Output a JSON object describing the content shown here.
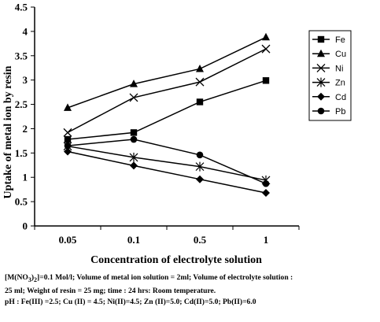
{
  "chart_data": {
    "type": "line",
    "title": "",
    "xlabel": "Concentration of electrolyte solution",
    "ylabel": "Uptake of metal ion by resin",
    "categories": [
      "0.05",
      "0.1",
      "0.5",
      "1"
    ],
    "ylim": [
      0,
      4.5
    ],
    "yticks": [
      "0",
      "0.5",
      "1",
      "1.5",
      "2",
      "2.5",
      "3",
      "3.5",
      "4",
      "4.5"
    ],
    "grid": false,
    "legend_position": "right",
    "series": [
      {
        "name": "Fe",
        "marker": "square",
        "values": [
          1.78,
          1.92,
          2.55,
          2.99
        ]
      },
      {
        "name": "Cu",
        "marker": "triangle",
        "values": [
          2.43,
          2.92,
          3.23,
          3.88
        ]
      },
      {
        "name": "Ni",
        "marker": "x",
        "values": [
          1.92,
          2.64,
          2.96,
          3.64
        ]
      },
      {
        "name": "Zn",
        "marker": "star",
        "values": [
          1.64,
          1.41,
          1.22,
          0.94
        ]
      },
      {
        "name": "Cd",
        "marker": "diamond",
        "values": [
          1.53,
          1.24,
          0.96,
          0.68
        ]
      },
      {
        "name": "Pb",
        "marker": "circle",
        "values": [
          1.65,
          1.78,
          1.46,
          0.87
        ]
      }
    ]
  },
  "caption": {
    "line1": "[M(NO3)2]=0.1 Mol/l; Volume of metal ion solution = 2ml; Volume of electrolyte solution :",
    "line2": "25 ml; Weight of resin = 25 mg;  time : 24 hrs: Room temperature.",
    "line3": "pH : Fe(III) =2.5;  Cu (II) = 4.5;  Ni(II)=4.5;  Zn (II)=5.0;  Cd(II)=5.0;  Pb(II)=6.0"
  }
}
